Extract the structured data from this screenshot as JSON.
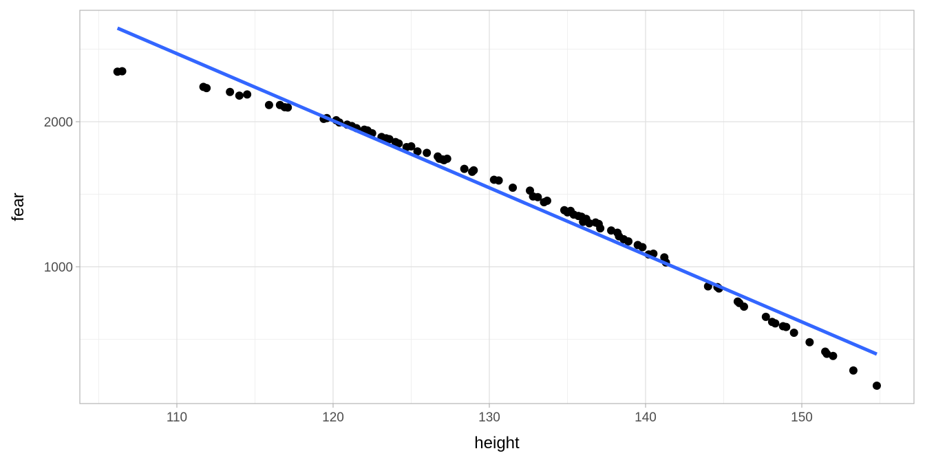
{
  "chart_data": {
    "type": "scatter",
    "xlabel": "height",
    "ylabel": "fear",
    "xlim": [
      103.79,
      157.18
    ],
    "ylim": [
      57,
      2768
    ],
    "xticks": [
      110,
      120,
      130,
      140,
      150
    ],
    "yticks": [
      1000,
      2000
    ],
    "xminor": [
      105,
      115,
      125,
      135,
      145,
      155
    ],
    "yminor": [
      500,
      1500,
      2500
    ],
    "grid": true,
    "color": "#000000",
    "x": [
      106.2,
      106.5,
      111.7,
      111.9,
      113.4,
      114.0,
      114.5,
      115.9,
      116.6,
      116.9,
      117.1,
      119.4,
      119.6,
      120.2,
      120.4,
      120.9,
      121.2,
      121.5,
      122.0,
      122.2,
      122.5,
      123.1,
      123.4,
      123.6,
      124.0,
      124.2,
      124.7,
      125.0,
      125.4,
      126.0,
      126.7,
      126.8,
      127.0,
      127.3,
      127.1,
      128.4,
      128.9,
      129.0,
      130.3,
      130.6,
      131.5,
      132.6,
      132.8,
      133.1,
      133.5,
      133.7,
      134.8,
      135.0,
      135.2,
      135.4,
      135.7,
      135.9,
      136.2,
      136.0,
      136.4,
      136.8,
      137.0,
      137.1,
      137.8,
      138.2,
      138.3,
      138.6,
      138.9,
      139.5,
      139.8,
      140.2,
      140.5,
      141.2,
      141.3,
      144.0,
      144.6,
      144.7,
      145.9,
      146.0,
      146.3,
      147.7,
      148.1,
      148.3,
      148.8,
      149.0,
      149.5,
      150.5,
      151.5,
      151.6,
      152.0,
      153.3,
      154.8
    ],
    "values": [
      2345,
      2348,
      2240,
      2232,
      2205,
      2180,
      2188,
      2115,
      2115,
      2100,
      2098,
      2020,
      2025,
      2010,
      1995,
      1980,
      1970,
      1955,
      1945,
      1940,
      1920,
      1895,
      1885,
      1880,
      1860,
      1850,
      1825,
      1830,
      1795,
      1785,
      1760,
      1745,
      1740,
      1745,
      1735,
      1675,
      1655,
      1665,
      1600,
      1595,
      1545,
      1525,
      1485,
      1480,
      1445,
      1455,
      1390,
      1375,
      1385,
      1360,
      1350,
      1345,
      1330,
      1310,
      1300,
      1305,
      1295,
      1265,
      1250,
      1235,
      1210,
      1190,
      1175,
      1150,
      1135,
      1085,
      1090,
      1065,
      1030,
      865,
      860,
      850,
      760,
      750,
      725,
      655,
      620,
      610,
      590,
      585,
      545,
      480,
      415,
      400,
      385,
      285,
      180
    ],
    "fit": {
      "x": [
        106.2,
        154.8
      ],
      "values": [
        2645,
        398
      ],
      "color": "#3366FF"
    }
  }
}
